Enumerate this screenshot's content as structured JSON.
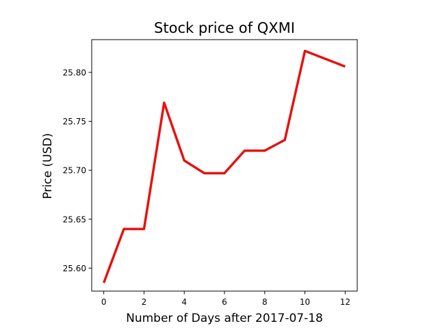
{
  "chart_data": {
    "type": "line",
    "title": "Stock price of QXMI",
    "xlabel": "Number of Days after 2017-07-18",
    "ylabel": "Price (USD)",
    "xlim": [
      -0.6,
      12.6
    ],
    "ylim": [
      25.5765,
      25.8335
    ],
    "xticks": [
      0,
      2,
      4,
      6,
      8,
      10,
      12
    ],
    "yticks": [
      25.6,
      25.65,
      25.7,
      25.75,
      25.8
    ],
    "ytick_labels": [
      "25.60",
      "25.65",
      "25.70",
      "25.75",
      "25.80"
    ],
    "grid": false,
    "legend": "none",
    "series": [
      {
        "color": "#e8110f",
        "x": [
          0,
          1,
          2,
          3,
          4,
          5,
          6,
          7,
          8,
          9,
          10,
          12
        ],
        "y": [
          25.585,
          25.64,
          25.64,
          25.769,
          25.71,
          25.697,
          25.697,
          25.72,
          25.72,
          25.731,
          25.822,
          25.806
        ]
      }
    ]
  }
}
